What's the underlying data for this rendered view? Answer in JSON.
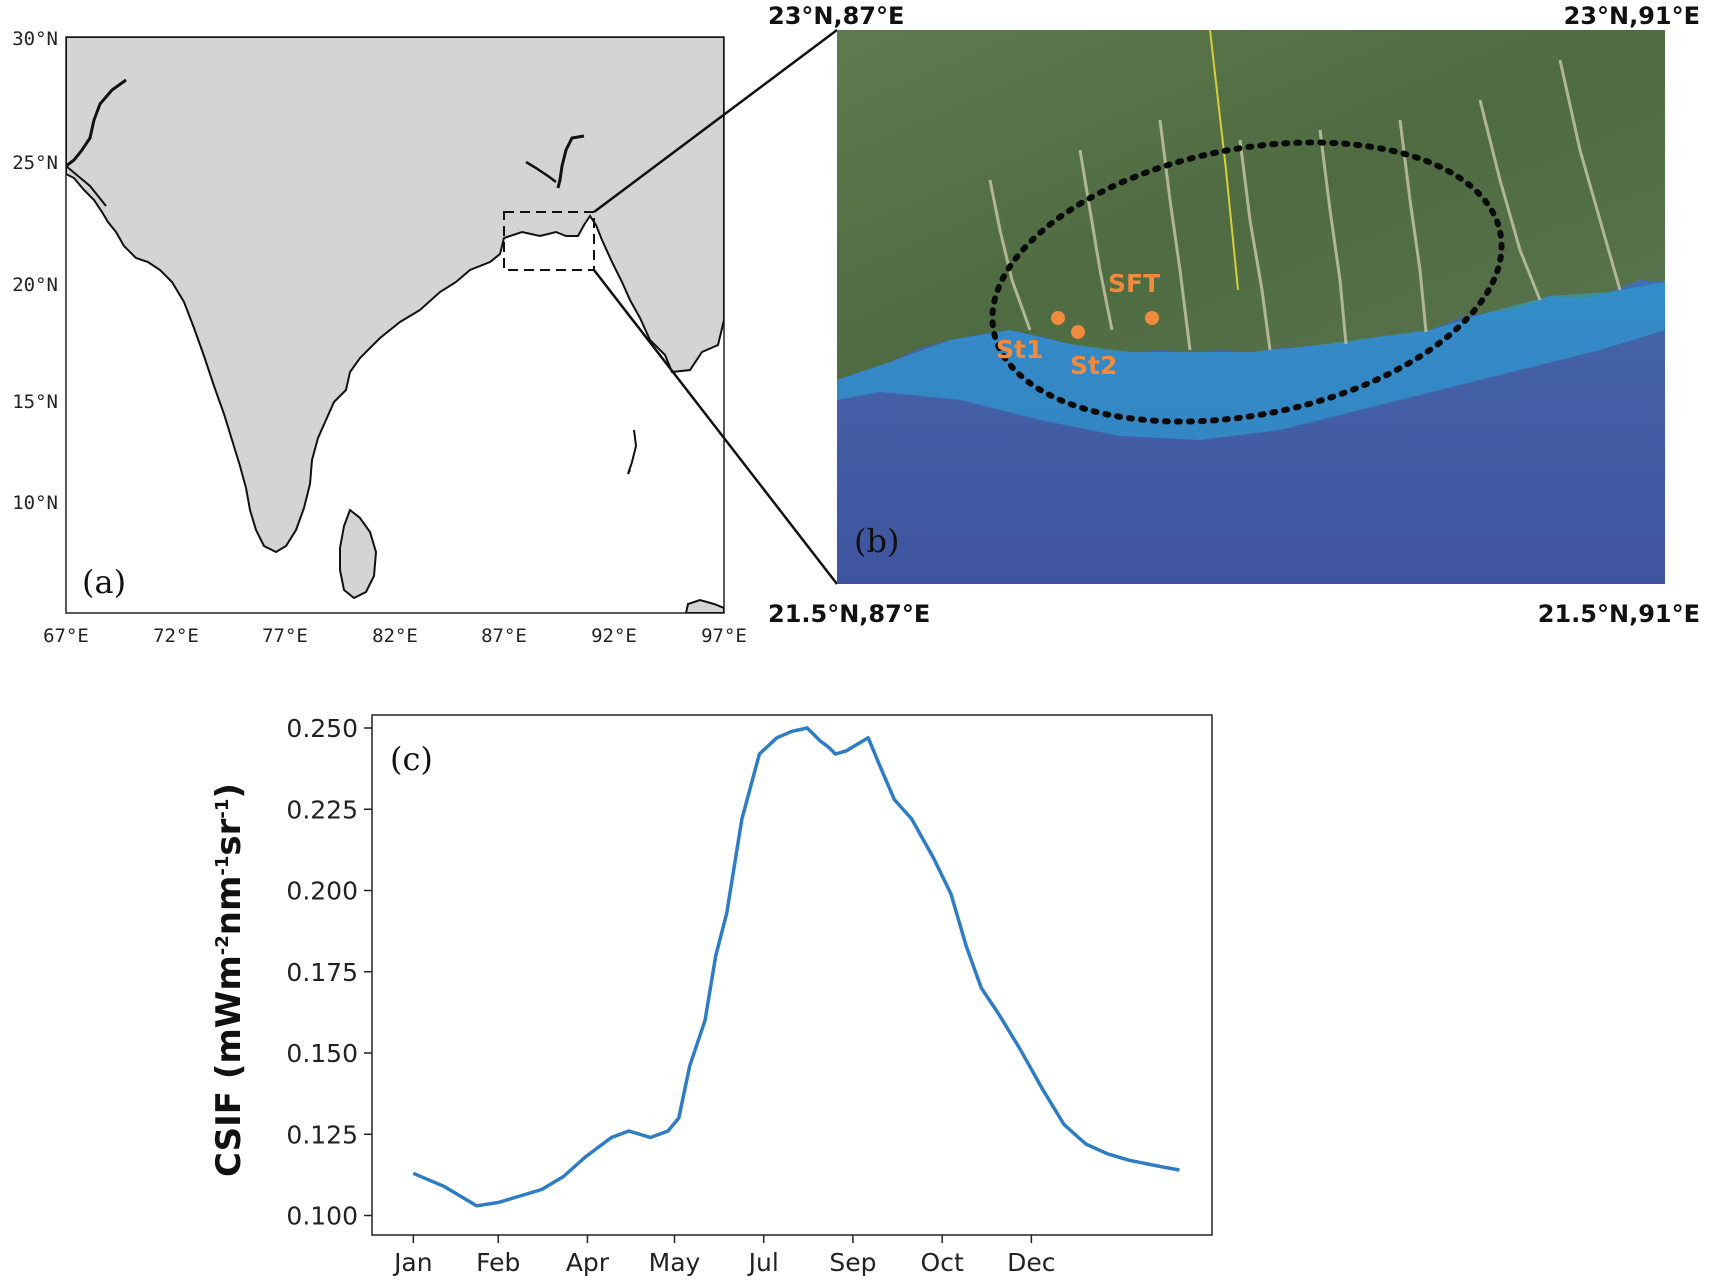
{
  "panel_a": {
    "label": "(a)",
    "lat_ticks": [
      "30°N",
      "25°N",
      "20°N",
      "15°N",
      "10°N"
    ],
    "lon_ticks": [
      "67°E",
      "72°E",
      "77°E",
      "82°E",
      "87°E",
      "92°E",
      "97°E"
    ],
    "land_color": "#d4d4d4"
  },
  "panel_b": {
    "label": "(b)",
    "corners": {
      "top_left": "23°N,87°E",
      "top_right": "23°N,91°E",
      "bottom_left": "21.5°N,87°E",
      "bottom_right": "21.5°N,91°E"
    },
    "sites": [
      {
        "name": "St1"
      },
      {
        "name": "St2"
      },
      {
        "name": "SFT"
      }
    ],
    "site_color": "#f08a3c"
  },
  "chart_data": {
    "type": "line",
    "label": "(c)",
    "ylabel_main": "CSIF (mWm",
    "ylabel_parts": [
      "-2",
      "nm",
      "-1",
      "sr",
      "-1",
      ")"
    ],
    "x_tick_labels": [
      "Jan",
      "Feb",
      "Apr",
      "May",
      "Jul",
      "Sep",
      "Oct",
      "Dec"
    ],
    "y_tick_labels": [
      "0.100",
      "0.125",
      "0.150",
      "0.175",
      "0.200",
      "0.225",
      "0.250"
    ],
    "ylim": [
      0.1,
      0.25
    ],
    "line_color": "#2e7cc4",
    "series": [
      {
        "x": [
          1,
          15,
          30,
          40,
          50,
          60,
          70,
          80,
          92,
          100,
          110,
          118,
          123,
          128,
          135,
          140,
          145,
          152,
          160,
          168,
          175,
          182,
          188,
          192,
          195,
          200,
          205,
          210,
          215,
          222,
          230,
          240,
          248,
          255,
          262,
          270,
          280,
          290,
          300,
          310,
          320,
          330,
          345,
          353
        ],
        "y": [
          0.113,
          0.109,
          0.103,
          0.104,
          0.106,
          0.108,
          0.112,
          0.118,
          0.124,
          0.126,
          0.124,
          0.126,
          0.13,
          0.146,
          0.16,
          0.18,
          0.193,
          0.222,
          0.242,
          0.247,
          0.249,
          0.25,
          0.246,
          0.244,
          0.242,
          0.243,
          0.245,
          0.247,
          0.239,
          0.228,
          0.222,
          0.21,
          0.199,
          0.183,
          0.17,
          0.162,
          0.151,
          0.139,
          0.128,
          0.122,
          0.119,
          0.117,
          0.115,
          0.114
        ]
      }
    ]
  }
}
